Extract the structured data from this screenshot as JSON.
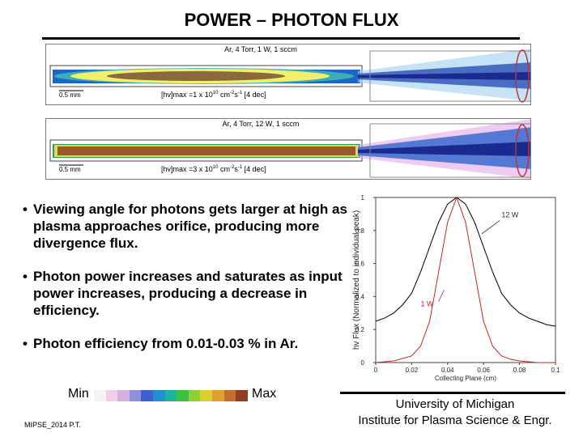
{
  "title": "POWER – PHOTON FLUX",
  "panels": [
    {
      "condition": "Ar, 4 Torr, 1 W, 1 sccm",
      "scale": "0.5 mm",
      "hvmax_prefix": "[hv]max =1 x 10",
      "hvmax_exp1": "10",
      "hvmax_mid": " cm",
      "hvmax_exp2": "-2",
      "hvmax_mid2": "s",
      "hvmax_exp3": "-1",
      "hvmax_suffix": " [4 dec]",
      "core_color": "#8a6a3a",
      "glow_color": "#f2f06a"
    },
    {
      "condition": "Ar, 4 Torr, 12 W, 1 sccm",
      "scale": "0.5 mm",
      "hvmax_prefix": "[hv]max =3 x 10",
      "hvmax_exp1": "10",
      "hvmax_mid": " cm",
      "hvmax_exp2": "-2",
      "hvmax_mid2": "s",
      "hvmax_exp3": "-1",
      "hvmax_suffix": " [4 dec]",
      "core_color": "#9a5a2a",
      "glow_color": "#e8d84a"
    }
  ],
  "bullets": [
    {
      "dot": "•",
      "text": "Viewing angle for photons gets larger at high as plasma approaches orifice, producing more divergence flux."
    },
    {
      "dot": "•",
      "text": "Photon power increases and saturates as input power increases, producing a decrease in efficiency."
    },
    {
      "dot": "•",
      "text": "Photon efficiency from 0.01-0.03 % in Ar."
    }
  ],
  "legend": {
    "min": "Min",
    "max": "Max",
    "colors": [
      "#f4f4f4",
      "#f0d0e8",
      "#d8b0e0",
      "#9090d8",
      "#4060d0",
      "#2090d0",
      "#20b0a0",
      "#40c040",
      "#90d030",
      "#d8d030",
      "#e0a030",
      "#c07030",
      "#904020"
    ]
  },
  "footer": {
    "left": "MIPSE_2014 P.T.",
    "uni_line1": "University of Michigan",
    "uni_line2": "Institute for Plasma Science & Engr."
  },
  "chart_data": {
    "type": "line",
    "xlabel": "Collecting Plane (cm)",
    "ylabel": "hv Flux (Normalized to individual peak)",
    "xlim": [
      0,
      0.1
    ],
    "ylim": [
      0,
      1
    ],
    "xticks": [
      0,
      0.02,
      0.04,
      0.06,
      0.08,
      0.1
    ],
    "xtick_labels": [
      "0",
      "0.02",
      "0.04",
      "0.06",
      "0.08",
      "0.1"
    ],
    "yticks": [
      0,
      0.2,
      0.4,
      0.6,
      0.8,
      1
    ],
    "ytick_labels": [
      "0",
      "0.2",
      "0.4",
      "0.6",
      "0.8",
      "1"
    ],
    "series": [
      {
        "name": "12 W",
        "color": "#000000",
        "x": [
          0.0,
          0.005,
          0.01,
          0.015,
          0.02,
          0.025,
          0.03,
          0.035,
          0.04,
          0.045,
          0.05,
          0.055,
          0.06,
          0.065,
          0.07,
          0.075,
          0.08,
          0.085,
          0.09,
          0.095,
          0.1
        ],
        "y": [
          0.25,
          0.27,
          0.3,
          0.35,
          0.42,
          0.55,
          0.7,
          0.85,
          0.96,
          1.0,
          0.96,
          0.85,
          0.7,
          0.55,
          0.42,
          0.35,
          0.3,
          0.27,
          0.25,
          0.23,
          0.22
        ]
      },
      {
        "name": "1 W",
        "color": "#cc2222",
        "x": [
          0.0,
          0.01,
          0.02,
          0.025,
          0.03,
          0.035,
          0.04,
          0.045,
          0.05,
          0.055,
          0.06,
          0.065,
          0.07,
          0.075,
          0.08,
          0.09,
          0.1
        ],
        "y": [
          0.0,
          0.01,
          0.04,
          0.1,
          0.25,
          0.55,
          0.85,
          1.0,
          0.85,
          0.55,
          0.25,
          0.1,
          0.04,
          0.02,
          0.01,
          0.0,
          0.0
        ]
      }
    ]
  }
}
